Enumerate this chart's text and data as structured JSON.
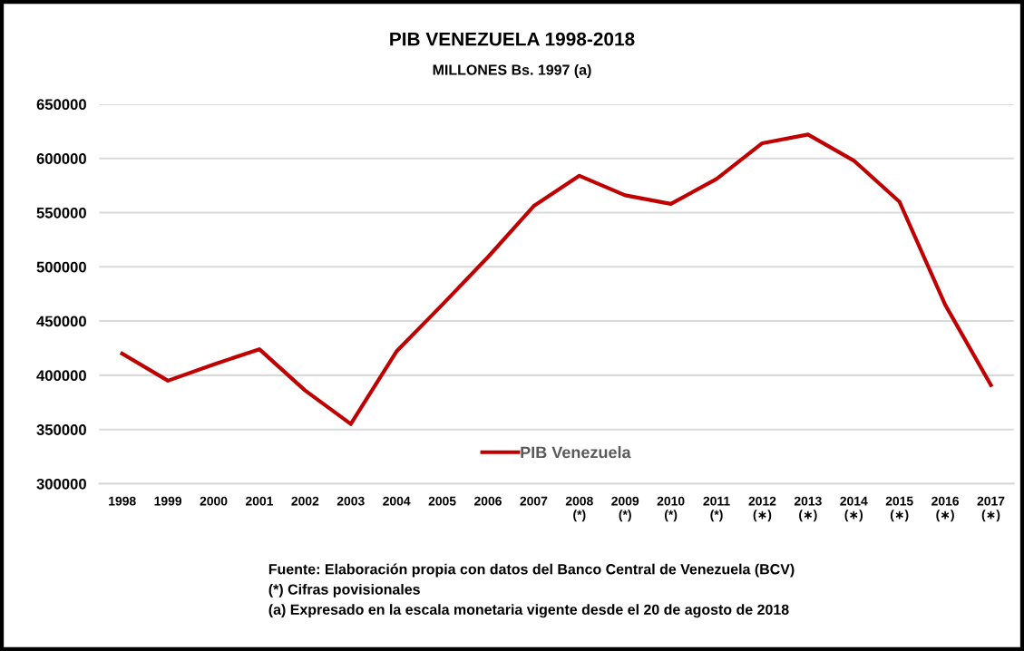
{
  "chart_data": {
    "type": "line",
    "title": "PIB VENEZUELA 1998-2018",
    "subtitle": "MILLONES Bs. 1997 (a)",
    "categories": [
      "1998",
      "1999",
      "2000",
      "2001",
      "2002",
      "2003",
      "2004",
      "2005",
      "2006",
      "2007",
      "2008\n(*)",
      "2009\n(*)",
      "2010\n(*)",
      "2011\n(*)",
      "2012\n(∗)",
      "2013\n(∗)",
      "2014\n(∗)",
      "2015\n(∗)",
      "2016\n(∗)",
      "2017\n(∗)"
    ],
    "series": [
      {
        "name": "PIB Venezuela",
        "color": "#c00000",
        "values": [
          420000,
          395000,
          410000,
          424000,
          386000,
          355000,
          422000,
          465000,
          509000,
          556000,
          584000,
          566000,
          558000,
          581000,
          614000,
          622000,
          598000,
          560000,
          465000,
          391000
        ]
      }
    ],
    "ylim": [
      300000,
      650000
    ],
    "yticks": [
      300000,
      350000,
      400000,
      450000,
      500000,
      550000,
      600000,
      650000
    ],
    "grid": "y",
    "legend": "bottom",
    "marker": "none",
    "line_style": "solid",
    "annotations": [
      "Fuente: Elaboración propia con datos del Banco Central de Venezuela (BCV)",
      "(*) Cifras povisionales",
      "(a) Expresado en la escala monetaria vigente desde el 20 de agosto de 2018"
    ]
  }
}
